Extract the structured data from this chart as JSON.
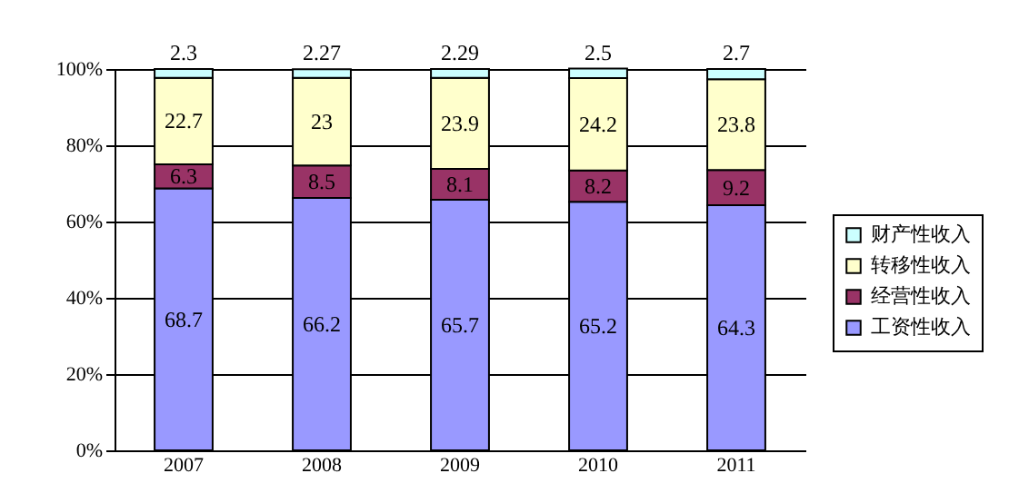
{
  "chart_data": {
    "type": "bar",
    "stacked": true,
    "categories": [
      "2007",
      "2008",
      "2009",
      "2010",
      "2011"
    ],
    "series": [
      {
        "name": "工资性收入",
        "color": "#9999ff",
        "values": [
          68.7,
          66.2,
          65.7,
          65.2,
          64.3
        ]
      },
      {
        "name": "经营性收入",
        "color": "#993366",
        "values": [
          6.3,
          8.5,
          8.1,
          8.2,
          9.2
        ]
      },
      {
        "name": "转移性收入",
        "color": "#ffffcc",
        "values": [
          22.7,
          23,
          23.9,
          24.2,
          23.8
        ]
      },
      {
        "name": "财产性收入",
        "color": "#ccffff",
        "values": [
          2.3,
          2.27,
          2.29,
          2.5,
          2.7
        ]
      }
    ],
    "ylim": [
      0,
      100
    ],
    "yticks": [
      {
        "value": 0,
        "label": "0%"
      },
      {
        "value": 20,
        "label": "20%"
      },
      {
        "value": 40,
        "label": "40%"
      },
      {
        "value": 60,
        "label": "60%"
      },
      {
        "value": 80,
        "label": "80%"
      },
      {
        "value": 100,
        "label": "100%"
      }
    ],
    "grid": "y",
    "legend": "right",
    "data_labels": true
  }
}
